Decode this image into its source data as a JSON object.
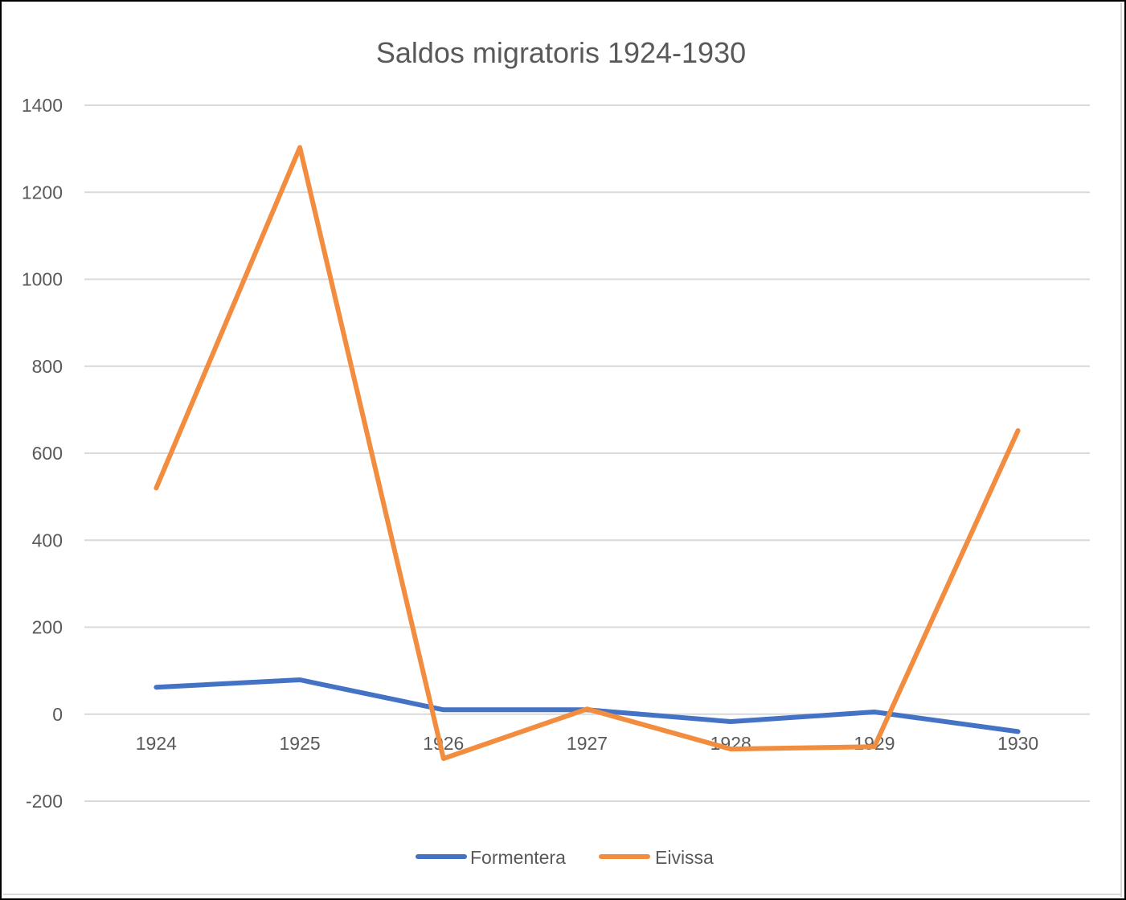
{
  "chart_data": {
    "type": "line",
    "title": "Saldos migratoris 1924-1930",
    "xlabel": "",
    "ylabel": "",
    "categories": [
      "1924",
      "1925",
      "1926",
      "1927",
      "1928",
      "1929",
      "1930"
    ],
    "y_ticks": [
      "1400",
      "1200",
      "1000",
      "800",
      "600",
      "400",
      "200",
      "0",
      "-200"
    ],
    "ylim": [
      -200,
      1400
    ],
    "grid": true,
    "legend_position": "bottom",
    "series": [
      {
        "name": "Formentera",
        "color": "#4472c4",
        "values": [
          62,
          79,
          10,
          10,
          -17,
          5,
          -40
        ]
      },
      {
        "name": "Eivissa",
        "color": "#f28c3f",
        "values": [
          520,
          1303,
          -102,
          12,
          -80,
          -75,
          652
        ]
      }
    ]
  }
}
